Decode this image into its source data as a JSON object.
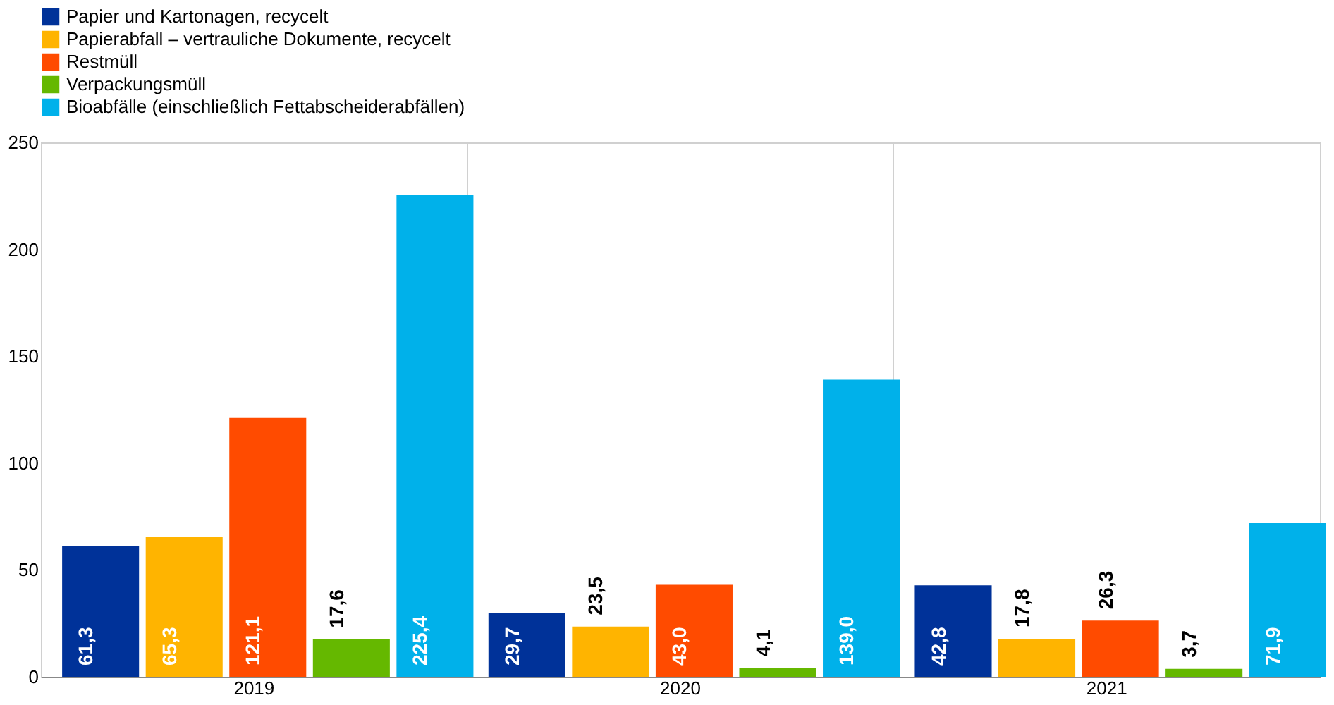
{
  "chart_data": {
    "type": "bar",
    "categories": [
      "2019",
      "2020",
      "2021"
    ],
    "series": [
      {
        "name": "Papier und Kartonagen, recycelt",
        "color": "#003299",
        "values": [
          61.3,
          29.7,
          42.8
        ],
        "value_labels": [
          "61,3",
          "29,7",
          "42,8"
        ]
      },
      {
        "name": "Papierabfall – vertrauliche Dokumente, recycelt",
        "color": "#ffb400",
        "values": [
          65.3,
          23.5,
          17.8
        ],
        "value_labels": [
          "65,3",
          "23,5",
          "17,8"
        ]
      },
      {
        "name": "Restmüll",
        "color": "#ff4b00",
        "values": [
          121.1,
          43.0,
          26.3
        ],
        "value_labels": [
          "121,1",
          "43,0",
          "26,3"
        ]
      },
      {
        "name": "Verpackungsmüll",
        "color": "#65b800",
        "values": [
          17.6,
          4.1,
          3.7
        ],
        "value_labels": [
          "17,6",
          "4,1",
          "3,7"
        ]
      },
      {
        "name": "Bioabfälle (einschließlich Fettabscheiderabfällen)",
        "color": "#00b1ea",
        "values": [
          225.4,
          139.0,
          71.9
        ],
        "value_labels": [
          "225,4",
          "139,0",
          "71,9"
        ]
      }
    ],
    "ylim": [
      0,
      250
    ],
    "yticks": [
      0,
      50,
      100,
      150,
      200,
      250
    ],
    "grid": "x",
    "legend": "top left"
  }
}
